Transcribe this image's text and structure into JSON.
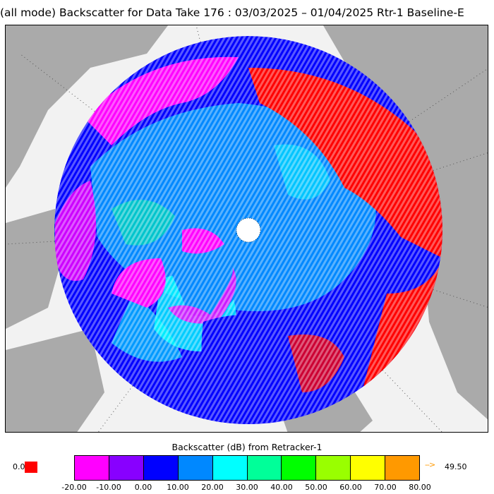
{
  "title": "(all mode) Backscatter for Data Take 176 : 03/03/2025 – 01/04/2025 Rtr-1 Baseline-E",
  "colorbar": {
    "label": "Backscatter (dB) from Retracker-1",
    "ticks": [
      "-20.00",
      "-10.00",
      "0.00",
      "10.00",
      "20.00",
      "30.00",
      "40.00",
      "50.00",
      "60.00",
      "70.00",
      "80.00"
    ],
    "colors": [
      "#ff00ff",
      "#8800ff",
      "#0000ff",
      "#0088ff",
      "#00ffff",
      "#00ff99",
      "#00ff00",
      "#99ff00",
      "#ffff00",
      "#ff9900"
    ],
    "under_value": "0.0",
    "under_color": "#ff0000",
    "over_value": "49.50",
    "over_color": "#ff9900"
  },
  "map": {
    "projection": "north-polar-stereographic",
    "land_color": "#aaaaaa",
    "ocean_color": "#f2f2f2",
    "pole_marker": "white-circle"
  }
}
